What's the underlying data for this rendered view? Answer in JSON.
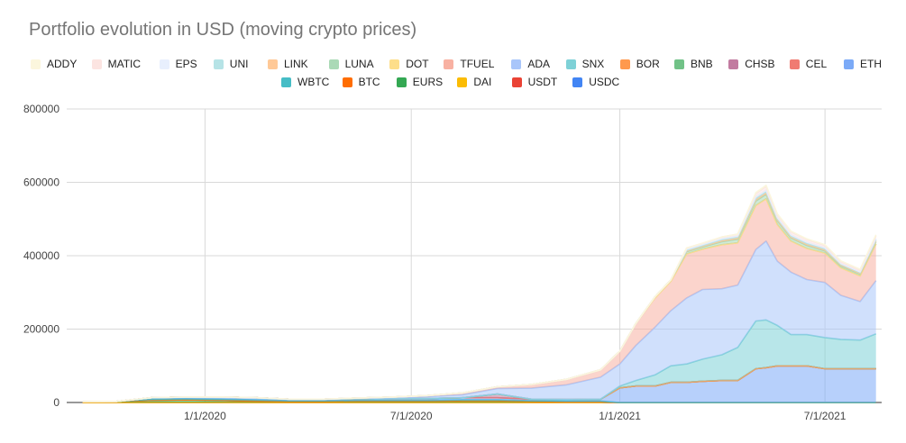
{
  "chart_data": {
    "type": "area",
    "stacked": true,
    "title": "Portfolio evolution in USD (moving crypto prices)",
    "xlabel": "",
    "ylabel": "",
    "ylim": [
      0,
      800000
    ],
    "yticks": [
      0,
      200000,
      400000,
      600000,
      800000
    ],
    "ytick_labels": [
      "0",
      "200000",
      "400000",
      "600000",
      "800000"
    ],
    "xlim": [
      "2019-09-01",
      "2021-08-20"
    ],
    "xticks": [
      "2020-01-01",
      "2020-07-01",
      "2021-01-01",
      "2021-07-01"
    ],
    "xtick_labels": [
      "1/1/2020",
      "7/1/2020",
      "1/1/2021",
      "7/1/2021"
    ],
    "grid": true,
    "legend_position": "top",
    "x": [
      "2019-09-15",
      "2019-10-15",
      "2019-11-15",
      "2019-12-15",
      "2020-01-15",
      "2020-02-15",
      "2020-03-15",
      "2020-04-15",
      "2020-05-15",
      "2020-06-15",
      "2020-07-15",
      "2020-08-15",
      "2020-09-15",
      "2020-10-15",
      "2020-11-15",
      "2020-12-15",
      "2021-01-01",
      "2021-01-15",
      "2021-02-01",
      "2021-02-15",
      "2021-03-01",
      "2021-03-15",
      "2021-04-01",
      "2021-04-15",
      "2021-05-01",
      "2021-05-10",
      "2021-05-20",
      "2021-06-01",
      "2021-06-15",
      "2021-07-01",
      "2021-07-15",
      "2021-08-01",
      "2021-08-15"
    ],
    "series": [
      {
        "name": "USDC",
        "color": "#4285f4",
        "values": [
          0,
          0,
          0,
          0,
          0,
          0,
          0,
          0,
          0,
          0,
          0,
          0,
          0,
          0,
          0,
          0,
          0,
          0,
          0,
          0,
          0,
          0,
          0,
          0,
          0,
          0,
          0,
          0,
          0,
          0,
          0,
          0,
          0
        ]
      },
      {
        "name": "USDT",
        "color": "#ea4335",
        "values": [
          0,
          0,
          0,
          0,
          0,
          0,
          0,
          0,
          0,
          0,
          0,
          0,
          0,
          0,
          0,
          0,
          0,
          0,
          0,
          0,
          0,
          0,
          0,
          0,
          0,
          0,
          0,
          0,
          0,
          0,
          0,
          0,
          0
        ]
      },
      {
        "name": "DAI",
        "color": "#fbbc04",
        "values": [
          0,
          0,
          0,
          0,
          0,
          0,
          0,
          0,
          0,
          0,
          0,
          0,
          0,
          0,
          0,
          0,
          0,
          0,
          0,
          0,
          0,
          0,
          0,
          0,
          0,
          0,
          0,
          0,
          0,
          0,
          0,
          0,
          0
        ]
      },
      {
        "name": "EURS",
        "color": "#34a853",
        "values": [
          2000,
          3000,
          6000,
          7000,
          6000,
          4000,
          3000,
          3000,
          4000,
          4000,
          4000,
          5000,
          5000,
          3000,
          2000,
          2000,
          0,
          0,
          0,
          0,
          0,
          0,
          0,
          0,
          0,
          0,
          0,
          0,
          0,
          0,
          0,
          0,
          0
        ]
      },
      {
        "name": "BTC",
        "color": "#ff6d01",
        "values": [
          0,
          0,
          0,
          0,
          0,
          0,
          0,
          0,
          0,
          0,
          0,
          0,
          0,
          0,
          0,
          0,
          0,
          0,
          0,
          0,
          0,
          0,
          0,
          0,
          0,
          0,
          0,
          0,
          0,
          0,
          0,
          0,
          0
        ]
      },
      {
        "name": "WBTC",
        "color": "#46bdc6",
        "values": [
          0,
          0,
          3000,
          3000,
          3000,
          3000,
          2000,
          2000,
          2000,
          2000,
          2000,
          2000,
          2000,
          2000,
          2000,
          2000,
          0,
          0,
          0,
          0,
          0,
          0,
          0,
          0,
          0,
          0,
          0,
          0,
          0,
          0,
          0,
          0,
          0
        ]
      },
      {
        "name": "ETH",
        "color": "#7baaf7",
        "values": [
          0,
          0,
          4000,
          5000,
          6000,
          6000,
          4000,
          4000,
          4000,
          5000,
          5000,
          6000,
          6000,
          4000,
          4000,
          5000,
          40000,
          45000,
          45000,
          55000,
          55000,
          58000,
          60000,
          60000,
          92000,
          95000,
          100000,
          100000,
          100000,
          92000,
          92000,
          92000,
          92000
        ]
      },
      {
        "name": "CEL",
        "color": "#f07b72",
        "values": [
          0,
          0,
          0,
          0,
          0,
          0,
          0,
          0,
          0,
          0,
          0,
          0,
          0,
          0,
          0,
          0,
          0,
          0,
          0,
          0,
          0,
          0,
          0,
          0,
          0,
          0,
          0,
          0,
          0,
          0,
          0,
          0,
          0
        ]
      },
      {
        "name": "CHSB",
        "color": "#c27ba0",
        "values": [
          0,
          0,
          0,
          0,
          0,
          0,
          0,
          0,
          0,
          0,
          0,
          0,
          10000,
          0,
          0,
          0,
          0,
          0,
          0,
          0,
          0,
          0,
          0,
          0,
          0,
          0,
          0,
          0,
          0,
          0,
          0,
          0,
          0
        ]
      },
      {
        "name": "BNB",
        "color": "#71c287",
        "values": [
          0,
          0,
          0,
          0,
          0,
          0,
          0,
          0,
          0,
          0,
          0,
          0,
          0,
          0,
          0,
          0,
          0,
          0,
          0,
          0,
          0,
          0,
          0,
          0,
          0,
          0,
          0,
          0,
          0,
          0,
          0,
          0,
          0
        ]
      },
      {
        "name": "BOR",
        "color": "#ff994d",
        "values": [
          0,
          0,
          0,
          0,
          0,
          0,
          0,
          0,
          0,
          0,
          0,
          0,
          0,
          0,
          0,
          0,
          0,
          0,
          0,
          0,
          0,
          0,
          0,
          0,
          0,
          0,
          0,
          0,
          0,
          0,
          0,
          0,
          0
        ]
      },
      {
        "name": "SNX",
        "color": "#7ed1d7",
        "values": [
          0,
          0,
          0,
          0,
          0,
          0,
          0,
          0,
          0,
          0,
          0,
          0,
          0,
          0,
          0,
          0,
          5000,
          15000,
          30000,
          45000,
          50000,
          60000,
          70000,
          90000,
          130000,
          130000,
          110000,
          85000,
          85000,
          85000,
          80000,
          78000,
          95000
        ]
      },
      {
        "name": "ADA",
        "color": "#a9c6fa",
        "values": [
          0,
          0,
          0,
          0,
          0,
          0,
          0,
          0,
          1000,
          2000,
          5000,
          8000,
          15000,
          30000,
          40000,
          60000,
          60000,
          95000,
          130000,
          150000,
          180000,
          190000,
          180000,
          170000,
          195000,
          215000,
          175000,
          170000,
          150000,
          150000,
          120000,
          105000,
          145000
        ]
      },
      {
        "name": "TFUEL",
        "color": "#f8b1a2",
        "values": [
          0,
          0,
          0,
          0,
          0,
          0,
          0,
          0,
          1000,
          2000,
          3000,
          5000,
          5000,
          10000,
          15000,
          20000,
          35000,
          60000,
          80000,
          80000,
          120000,
          110000,
          120000,
          115000,
          120000,
          115000,
          100000,
          85000,
          85000,
          80000,
          75000,
          70000,
          100000
        ]
      },
      {
        "name": "DOT",
        "color": "#fdde8a",
        "values": [
          0,
          0,
          0,
          0,
          0,
          0,
          0,
          0,
          0,
          0,
          0,
          0,
          0,
          0,
          0,
          0,
          0,
          0,
          0,
          0,
          0,
          0,
          0,
          0,
          0,
          0,
          0,
          0,
          0,
          0,
          0,
          0,
          0
        ]
      },
      {
        "name": "LUNA",
        "color": "#aad9b6",
        "values": [
          0,
          0,
          0,
          0,
          0,
          0,
          0,
          0,
          0,
          0,
          0,
          0,
          0,
          0,
          0,
          0,
          0,
          0,
          3000,
          4000,
          6000,
          6000,
          8000,
          10000,
          12000,
          12000,
          10000,
          8000,
          8000,
          6000,
          5000,
          5000,
          6000
        ]
      },
      {
        "name": "LINK",
        "color": "#ffc997",
        "values": [
          0,
          0,
          0,
          0,
          0,
          0,
          0,
          0,
          0,
          0,
          0,
          0,
          0,
          0,
          0,
          0,
          0,
          0,
          0,
          0,
          2000,
          2000,
          3000,
          3000,
          4000,
          4000,
          3000,
          3000,
          3000,
          3000,
          3000,
          2000,
          3000
        ]
      },
      {
        "name": "UNI",
        "color": "#b6e3e6",
        "values": [
          0,
          0,
          0,
          0,
          0,
          0,
          0,
          0,
          0,
          0,
          0,
          0,
          0,
          0,
          0,
          0,
          0,
          0,
          0,
          0,
          2000,
          2000,
          3000,
          3000,
          4000,
          4000,
          3000,
          3000,
          3000,
          3000,
          2000,
          2000,
          3000
        ]
      },
      {
        "name": "EPS",
        "color": "#e8effd",
        "values": [
          0,
          0,
          0,
          0,
          0,
          0,
          0,
          0,
          0,
          0,
          0,
          0,
          0,
          0,
          0,
          0,
          0,
          0,
          0,
          0,
          3000,
          3000,
          3000,
          3000,
          4000,
          4000,
          3000,
          3000,
          3000,
          3000,
          2000,
          2000,
          3000
        ]
      },
      {
        "name": "MATIC",
        "color": "#fce4e1",
        "values": [
          0,
          0,
          0,
          0,
          0,
          0,
          0,
          0,
          0,
          0,
          0,
          0,
          0,
          0,
          0,
          0,
          0,
          0,
          0,
          0,
          3000,
          3000,
          4000,
          5000,
          8000,
          10000,
          8000,
          8000,
          7000,
          6000,
          5000,
          5000,
          7000
        ]
      },
      {
        "name": "ADDY",
        "color": "#fbf6dd",
        "values": [
          0,
          0,
          0,
          0,
          0,
          0,
          0,
          0,
          0,
          0,
          0,
          0,
          0,
          0,
          0,
          0,
          0,
          0,
          0,
          0,
          0,
          0,
          0,
          0,
          3000,
          3000,
          2000,
          2000,
          2000,
          2000,
          2000,
          2000,
          3000
        ]
      }
    ]
  }
}
